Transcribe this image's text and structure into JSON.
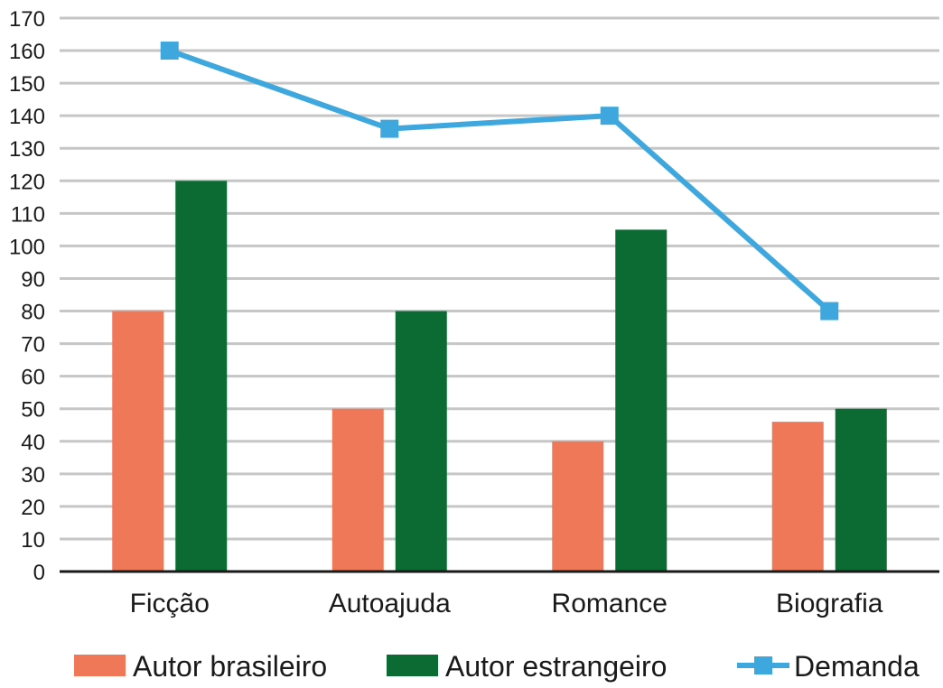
{
  "chart_data": {
    "type": "bar",
    "title": "",
    "xlabel": "",
    "ylabel": "",
    "ylim": [
      0,
      170
    ],
    "y_ticks": [
      0,
      10,
      20,
      30,
      40,
      50,
      60,
      70,
      80,
      90,
      100,
      110,
      120,
      130,
      140,
      150,
      160,
      170
    ],
    "grid": true,
    "legend_position": "bottom",
    "categories": [
      "Ficção",
      "Autoajuda",
      "Romance",
      "Biografia"
    ],
    "series": [
      {
        "name": "Autor brasileiro",
        "kind": "bar",
        "color": "#ef7858",
        "values": [
          80,
          50,
          40,
          46
        ]
      },
      {
        "name": "Autor estrangeiro",
        "kind": "bar",
        "color": "#0b6b33",
        "values": [
          120,
          80,
          105,
          50
        ]
      },
      {
        "name": "Demanda",
        "kind": "line",
        "marker": "square",
        "color": "#3ea8de",
        "values": [
          160,
          136,
          140,
          80
        ]
      }
    ]
  }
}
